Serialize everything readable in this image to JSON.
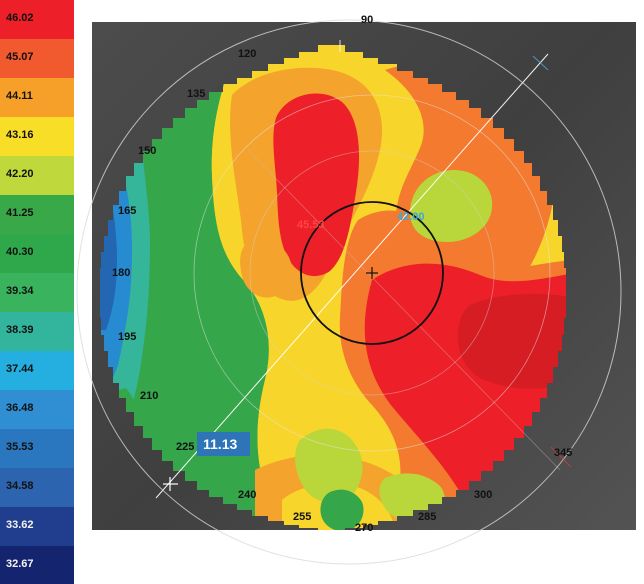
{
  "legend": {
    "items": [
      {
        "value": "46.02",
        "color": "#ed1f28"
      },
      {
        "value": "45.07",
        "color": "#f05a2e"
      },
      {
        "value": "44.11",
        "color": "#f6a02a"
      },
      {
        "value": "43.16",
        "color": "#f8de27"
      },
      {
        "value": "42.20",
        "color": "#bfd93c"
      },
      {
        "value": "41.25",
        "color": "#39a848"
      },
      {
        "value": "40.30",
        "color": "#2fa84c"
      },
      {
        "value": "39.34",
        "color": "#39b35e"
      },
      {
        "value": "38.39",
        "color": "#33b59d"
      },
      {
        "value": "37.44",
        "color": "#25aee0"
      },
      {
        "value": "36.48",
        "color": "#2f8fd2"
      },
      {
        "value": "35.53",
        "color": "#2a77bf"
      },
      {
        "value": "34.58",
        "color": "#2d64b0"
      },
      {
        "value": "33.62",
        "color": "#213e8e"
      },
      {
        "value": "32.67",
        "color": "#15246f"
      }
    ]
  },
  "map": {
    "angle_labels": {
      "a90": "90",
      "a120": "120",
      "a135": "135",
      "a150": "150",
      "a165": "165",
      "a180": "180",
      "a195": "195",
      "a210": "210",
      "a225": "225",
      "a240": "240",
      "a255": "255",
      "a270": "270",
      "a285": "285",
      "a300": "300",
      "a345": "345"
    },
    "red_value": "45.53",
    "blue_value": "42.00",
    "distance": "11.13",
    "colors": {
      "red": "#ed1f28",
      "darkred": "#d71d24",
      "orange": "#f37a2f",
      "lightorange": "#f4a32d",
      "yellow": "#f7d52a",
      "lime": "#b9d63a",
      "green": "#35a64a",
      "teal": "#35b599",
      "blue": "#278bd1",
      "darkblue": "#2366b2"
    }
  }
}
